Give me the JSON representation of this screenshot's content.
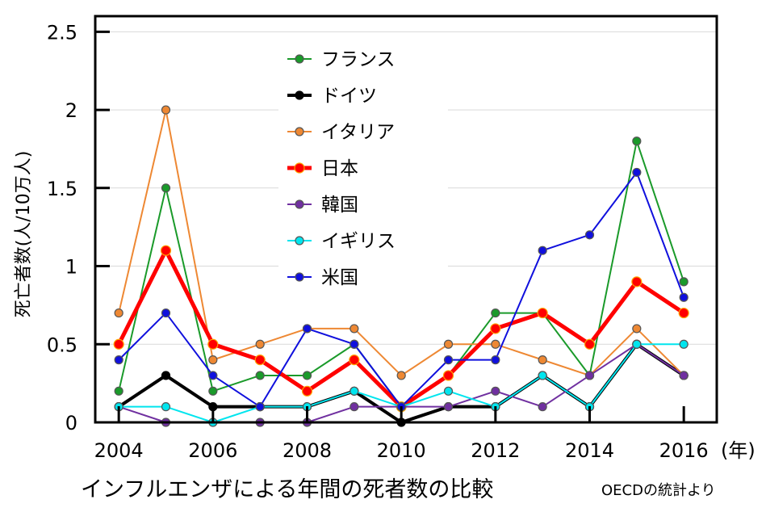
{
  "chart_data": {
    "type": "line",
    "title": "インフルエンザによる年間の死者数の比較",
    "source": "OECDの統計より",
    "xlabel": "",
    "x_unit": "(年)",
    "ylabel": "死亡者数(人/10万人)",
    "xlim": [
      2003.5,
      2016.7
    ],
    "ylim": [
      0,
      2.6
    ],
    "x_ticks": [
      2004,
      2006,
      2008,
      2010,
      2012,
      2014,
      2016
    ],
    "y_ticks": [
      0,
      0.5,
      1,
      1.5,
      2,
      2.5
    ],
    "y_tick_labels": [
      "0",
      "0.5",
      "1",
      "1.5",
      "2",
      "2.5"
    ],
    "x": [
      2004,
      2005,
      2006,
      2007,
      2008,
      2009,
      2010,
      2011,
      2012,
      2013,
      2014,
      2015,
      2016
    ],
    "grid": true,
    "legend_position": "top-center",
    "series": [
      {
        "name": "フランス",
        "color": "#1a9a2a",
        "values": [
          0.2,
          1.5,
          0.2,
          0.3,
          0.3,
          0.5,
          0.1,
          0.3,
          0.7,
          0.7,
          0.3,
          1.8,
          0.9
        ]
      },
      {
        "name": "ドイツ",
        "color": "#000000",
        "values": [
          0.1,
          0.3,
          0.1,
          0.1,
          0.1,
          0.2,
          0.0,
          0.1,
          0.1,
          0.3,
          0.1,
          0.5,
          0.3
        ]
      },
      {
        "name": "イタリア",
        "color": "#ee8833",
        "values": [
          0.7,
          2.0,
          0.4,
          0.5,
          0.6,
          0.6,
          0.3,
          0.5,
          0.5,
          0.4,
          0.3,
          0.6,
          0.3
        ]
      },
      {
        "name": "日本",
        "color": "#ff0000",
        "values": [
          0.5,
          1.1,
          0.5,
          0.4,
          0.2,
          0.4,
          0.1,
          0.3,
          0.6,
          0.7,
          0.5,
          0.9,
          0.7
        ]
      },
      {
        "name": "韓国",
        "color": "#7030a0",
        "values": [
          0.1,
          0.0,
          null,
          0.0,
          0.0,
          0.1,
          0.1,
          0.1,
          0.2,
          0.1,
          0.3,
          0.5,
          0.3
        ]
      },
      {
        "name": "イギリス",
        "color": "#00e5ee",
        "values": [
          0.1,
          0.1,
          0.0,
          0.1,
          0.1,
          0.2,
          0.1,
          0.2,
          0.1,
          0.3,
          0.1,
          0.5,
          0.5
        ]
      },
      {
        "name": "米国",
        "color": "#1010dd",
        "values": [
          0.4,
          0.7,
          0.3,
          0.1,
          0.6,
          0.5,
          0.1,
          0.4,
          0.4,
          1.1,
          1.2,
          1.6,
          0.8
        ]
      }
    ]
  }
}
